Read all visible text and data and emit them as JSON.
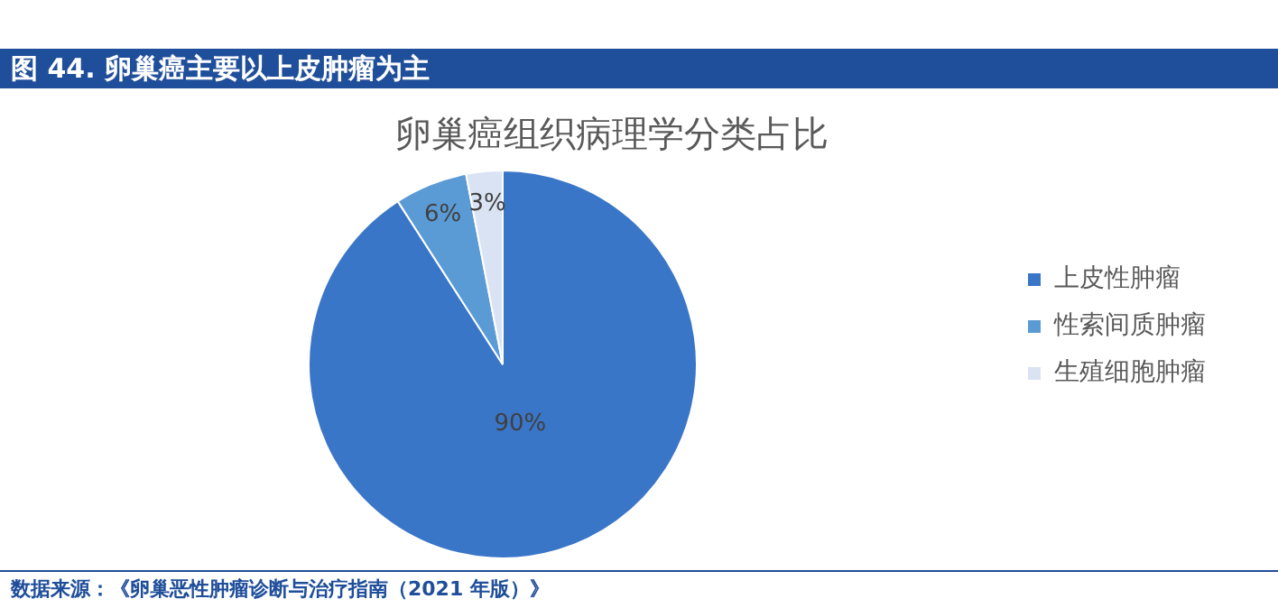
{
  "chart_data": {
    "type": "pie",
    "title": "图 44. 卵巢癌主要以上皮肿瘤为主",
    "subtitle": "卵巢癌组织病理学分类占比",
    "categories": [
      "上皮性肿瘤",
      "性索间质肿瘤",
      "生殖细胞肿瘤"
    ],
    "values": [
      90,
      6,
      3
    ],
    "colors": [
      "#3a76c8",
      "#5b9bd5",
      "#dae3f3"
    ],
    "value_labels": [
      "90%",
      "6%",
      "3%"
    ],
    "legend": "right",
    "annotations": [
      "数据来源：《卵巢恶性肿瘤诊断与治疗指南（2021 年版）》"
    ]
  }
}
